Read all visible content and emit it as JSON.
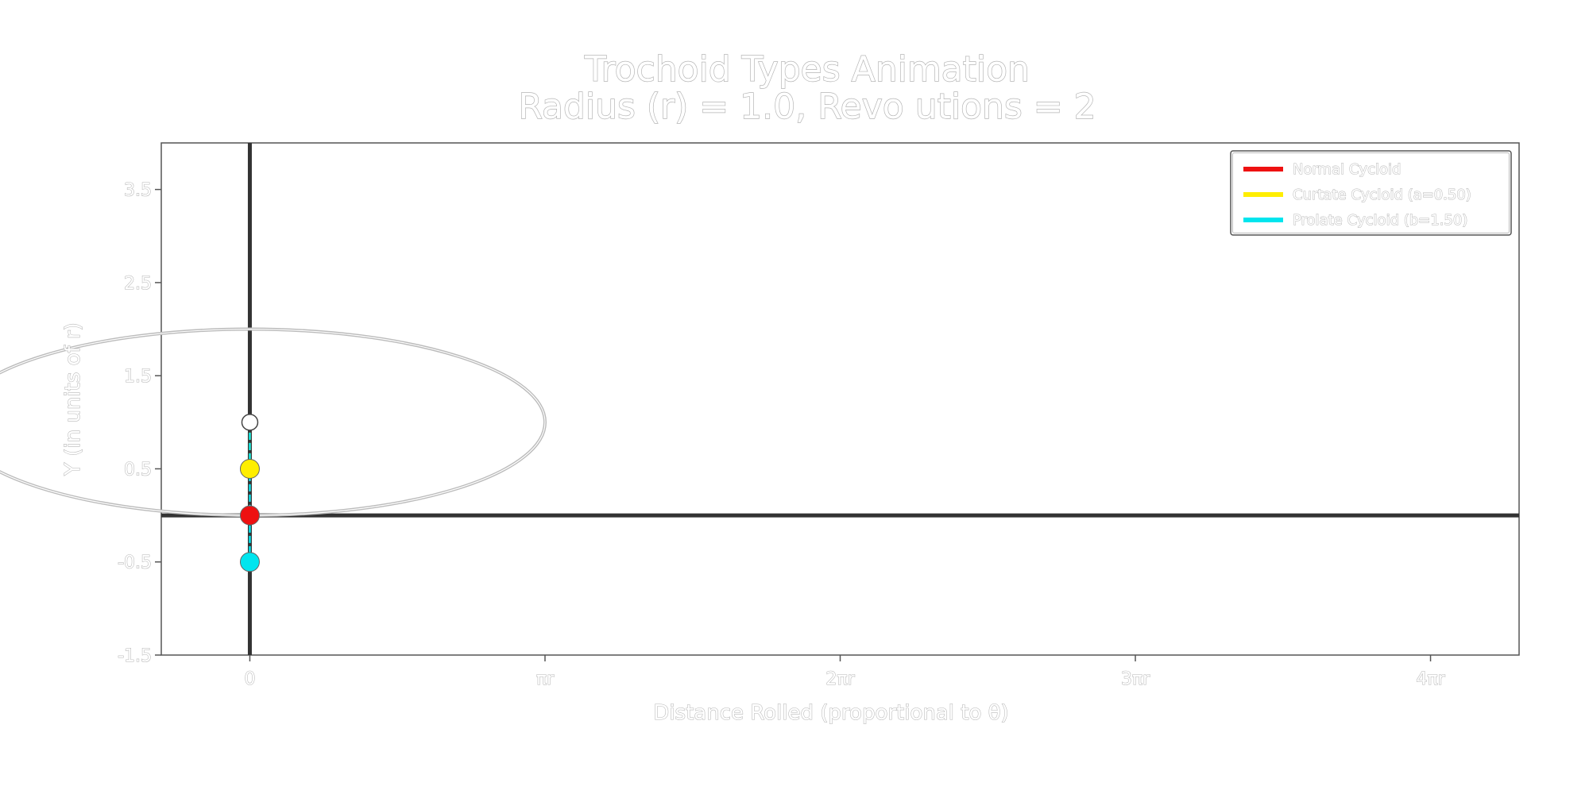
{
  "chart_data": {
    "type": "line",
    "title": "Trochoid Types Animation",
    "subtitle": "Radius (r) = 1.0, Revo utions = 2",
    "xlabel": "Distance Rolled (proportional to θ)",
    "ylabel": "Y (in units of r)",
    "xlim": [
      -0.3,
      4.3
    ],
    "xlim_units": "pi",
    "ylim": [
      -1.5,
      4.0
    ],
    "x_ticks": [
      {
        "value": 0,
        "label": "0"
      },
      {
        "value": 1,
        "label": "πr"
      },
      {
        "value": 2,
        "label": "2πr"
      },
      {
        "value": 3,
        "label": "3πr"
      },
      {
        "value": 4,
        "label": "4πr"
      }
    ],
    "y_ticks": [
      {
        "value": -1.5,
        "label": "-1.5"
      },
      {
        "value": -0.5,
        "label": "-0.5"
      },
      {
        "value": 0.5,
        "label": "0.5"
      },
      {
        "value": 1.5,
        "label": "1.5"
      },
      {
        "value": 2.5,
        "label": "2.5"
      },
      {
        "value": 3.5,
        "label": "3.5"
      }
    ],
    "grid": false,
    "legend_position": "top-right",
    "reference_lines": {
      "x": 0,
      "y": 0,
      "color": "#333333"
    },
    "rolling_circle": {
      "center_x": 0,
      "center_y": 1.0,
      "radius": 1.0,
      "color": "#bbbbbb"
    },
    "circle_center": {
      "x": 0,
      "y": 1.0,
      "color": "#ffffff"
    },
    "series": [
      {
        "name": "Normal Cycloid",
        "color": "#ee1111",
        "point": {
          "x": 0,
          "y": 0.0
        }
      },
      {
        "name": "Curtate Cycloid (a=0.50)",
        "color": "#ffee00",
        "point": {
          "x": 0,
          "y": 0.5
        }
      },
      {
        "name": "Prolate Cycloid (b=1.50)",
        "color": "#00e5ee",
        "point": {
          "x": 0,
          "y": -0.5
        }
      }
    ]
  }
}
